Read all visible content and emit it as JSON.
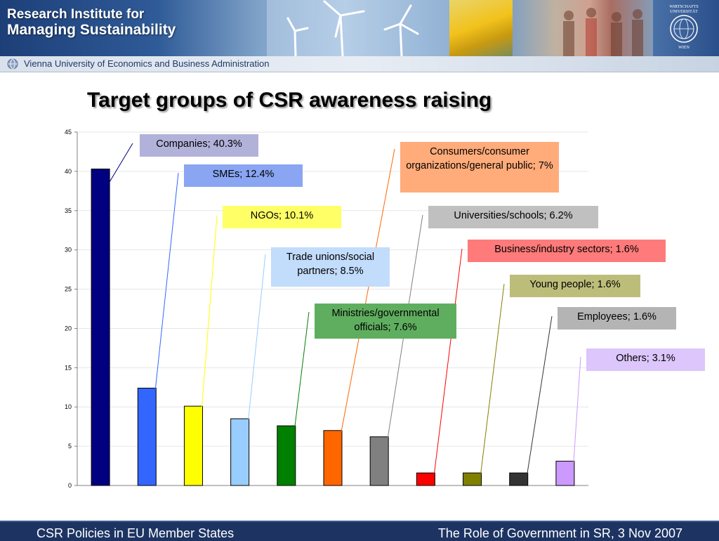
{
  "header": {
    "title_line1": "Research Institute for",
    "title_line2": "Managing Sustainability",
    "university_logo_text": "WIRTSCHAFTS UNIVERSITÄT WIEN",
    "subtitle": "Vienna University of Economics and Business Administration"
  },
  "slide": {
    "title": "Target groups of CSR awareness raising"
  },
  "footer": {
    "left": "CSR Policies in EU Member States",
    "right": "The Role of Government in SR, 3 Nov 2007"
  },
  "chart_data": {
    "type": "bar",
    "title": "",
    "xlabel": "",
    "ylabel": "",
    "ylim": [
      0,
      45
    ],
    "yticks": [
      0,
      5,
      10,
      15,
      20,
      25,
      30,
      35,
      40,
      45
    ],
    "grid": true,
    "legend": "none",
    "categories": [
      "Companies",
      "SMEs",
      "NGOs",
      "Trade unions/social partners",
      "Ministries/governmental officials",
      "Consumers/consumer organizations/general public",
      "Universities/schools",
      "Business/industry sectors",
      "Young people",
      "Employees",
      "Others"
    ],
    "values": [
      40.3,
      12.4,
      10.1,
      8.5,
      7.6,
      7.0,
      6.2,
      1.6,
      1.6,
      1.6,
      3.1
    ],
    "colors": [
      "#000080",
      "#3366ff",
      "#ffff00",
      "#99ccff",
      "#008000",
      "#ff6600",
      "#808080",
      "#ff0000",
      "#808000",
      "#333333",
      "#cc99ff"
    ],
    "data_labels": [
      "Companies; 40.3%",
      "SMEs; 12.4%",
      "NGOs; 10.1%",
      "Trade unions/social partners; 8.5%",
      "Ministries/governmental officials; 7.6%",
      "Consumers/consumer organizations/general public; 7%",
      "Universities/schools; 6.2%",
      "Business/industry sectors; 1.6%",
      "Young people; 1.6%",
      "Employees; 1.6%",
      "Others; 3.1%"
    ],
    "label_colors": [
      "#b1b1d9",
      "#8aa6f2",
      "#ffff66",
      "#c2dcfb",
      "#5fae5f",
      "#ffab7a",
      "#c0c0c0",
      "#ff7a7a",
      "#bdbd7a",
      "#b4b4b4",
      "#dcc6fb"
    ]
  }
}
